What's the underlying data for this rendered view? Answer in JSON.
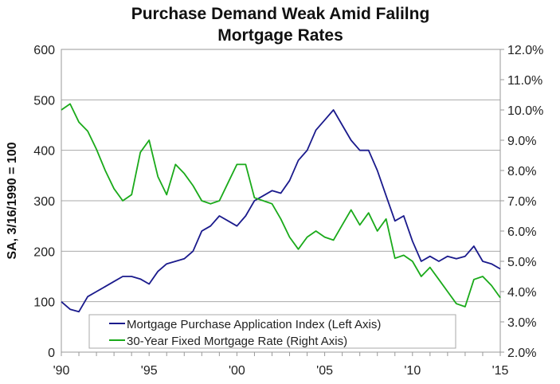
{
  "chart_data": {
    "type": "line",
    "title_line1": "Purchase Demand Weak Amid Falilng",
    "title_line2": "Mortgage Rates",
    "ylabel": "SA, 3/16/1990 = 100",
    "xlim": [
      1990,
      2015
    ],
    "ylim_left": [
      0,
      600
    ],
    "ylim_right": [
      2.0,
      12.0
    ],
    "grid": true,
    "legend_placement": "bottom-left",
    "x_ticks": [
      {
        "value": 1990,
        "label": "'90"
      },
      {
        "value": 1995,
        "label": "'95"
      },
      {
        "value": 2000,
        "label": "'00"
      },
      {
        "value": 2005,
        "label": "'05"
      },
      {
        "value": 2010,
        "label": "'10"
      },
      {
        "value": 2015,
        "label": "'15"
      }
    ],
    "left_ticks": [
      {
        "value": 0,
        "label": "0"
      },
      {
        "value": 100,
        "label": "100"
      },
      {
        "value": 200,
        "label": "200"
      },
      {
        "value": 300,
        "label": "300"
      },
      {
        "value": 400,
        "label": "400"
      },
      {
        "value": 500,
        "label": "500"
      },
      {
        "value": 600,
        "label": "600"
      }
    ],
    "right_ticks": [
      {
        "value": 2,
        "label": "2.0%"
      },
      {
        "value": 3,
        "label": "3.0%"
      },
      {
        "value": 4,
        "label": "4.0%"
      },
      {
        "value": 5,
        "label": "5.0%"
      },
      {
        "value": 6,
        "label": "6.0%"
      },
      {
        "value": 7,
        "label": "7.0%"
      },
      {
        "value": 8,
        "label": "8.0%"
      },
      {
        "value": 9,
        "label": "9.0%"
      },
      {
        "value": 10,
        "label": "10.0%"
      },
      {
        "value": 11,
        "label": "11.0%"
      },
      {
        "value": 12,
        "label": "12.0%"
      }
    ],
    "x": [
      1990,
      1990.5,
      1991,
      1991.5,
      1992,
      1992.5,
      1993,
      1993.5,
      1994,
      1994.5,
      1995,
      1995.5,
      1996,
      1996.5,
      1997,
      1997.5,
      1998,
      1998.5,
      1999,
      1999.5,
      2000,
      2000.5,
      2001,
      2001.5,
      2002,
      2002.5,
      2003,
      2003.5,
      2004,
      2004.5,
      2005,
      2005.5,
      2006,
      2006.5,
      2007,
      2007.5,
      2008,
      2008.5,
      2009,
      2009.5,
      2010,
      2010.5,
      2011,
      2011.5,
      2012,
      2012.5,
      2013,
      2013.5,
      2014,
      2014.5,
      2015
    ],
    "series": [
      {
        "name": "Mortgage Purchase Application Index (Left Axis)",
        "axis": "left",
        "color": "#1a1a8c",
        "values": [
          100,
          85,
          80,
          110,
          120,
          130,
          140,
          150,
          150,
          145,
          135,
          160,
          175,
          180,
          185,
          200,
          240,
          250,
          270,
          260,
          250,
          270,
          300,
          310,
          320,
          315,
          340,
          380,
          400,
          440,
          460,
          480,
          450,
          420,
          400,
          400,
          360,
          310,
          260,
          270,
          220,
          180,
          190,
          180,
          190,
          185,
          190,
          210,
          180,
          175,
          165
        ]
      },
      {
        "name": "30-Year Fixed Mortgage Rate (Right Axis)",
        "axis": "right",
        "color": "#1aaa1a",
        "values": [
          10.0,
          10.2,
          9.6,
          9.3,
          8.7,
          8.0,
          7.4,
          7.0,
          7.2,
          8.6,
          9.0,
          7.8,
          7.2,
          8.2,
          7.9,
          7.5,
          7.0,
          6.9,
          7.0,
          7.6,
          8.2,
          8.2,
          7.1,
          7.0,
          6.9,
          6.4,
          5.8,
          5.4,
          5.8,
          6.0,
          5.8,
          5.7,
          6.2,
          6.7,
          6.2,
          6.6,
          6.0,
          6.4,
          5.1,
          5.2,
          5.0,
          4.5,
          4.8,
          4.4,
          4.0,
          3.6,
          3.5,
          4.4,
          4.5,
          4.2,
          3.8
        ]
      }
    ]
  }
}
